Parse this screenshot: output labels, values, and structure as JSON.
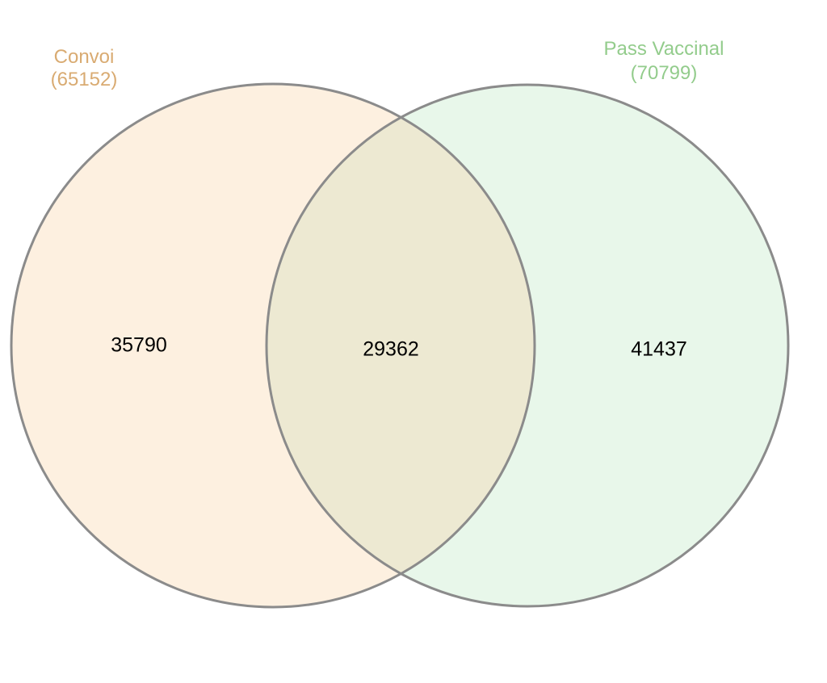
{
  "sets": [
    {
      "name": "Convoi",
      "size_label": "(65152)",
      "size": 65152,
      "fill_color": "#fdf0e0",
      "label_color": "#d9ab72"
    },
    {
      "name": "Pass Vaccinal",
      "size_label": "(70799)",
      "size": 70799,
      "fill_color": "#e8f7ea",
      "label_color": "#93cc8c"
    }
  ],
  "regions": {
    "only_a": "35790",
    "intersection": "29362",
    "only_b": "41437"
  },
  "intersection_color": "#ede9d2",
  "outline_color": "#8b8b8b"
}
